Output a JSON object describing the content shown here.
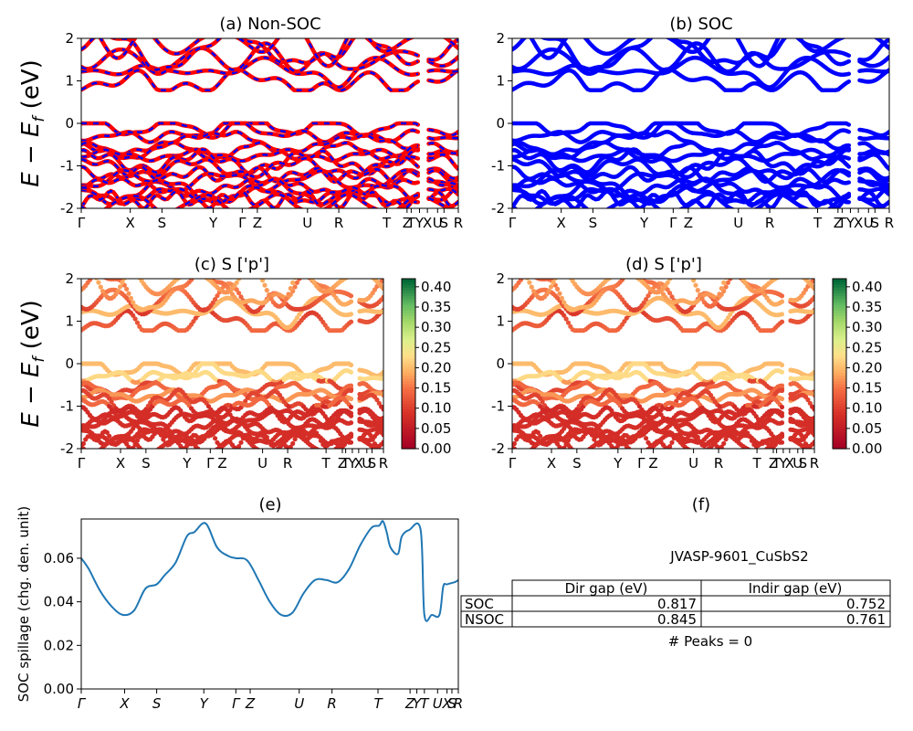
{
  "colors": {
    "nonsoc_band": "#ff0000",
    "nonsoc_dash": "#0000ff",
    "soc_band": "#0000ff",
    "spillage_line": "#1f77b4",
    "colormap": "RdYlGn",
    "axis": "#000000"
  },
  "ylabel_energy": "E − E",
  "ylabel_energy_sub": "f",
  "ylabel_energy_unit": " (eV)",
  "hsp_labels": [
    "Γ",
    "X",
    "S",
    "Y",
    "Γ",
    "Z",
    "U",
    "R",
    "T",
    "Z",
    "T",
    "Y",
    "X",
    "U",
    "S",
    "R"
  ],
  "hsp_labels_e": [
    "Γ",
    "X",
    "S",
    "Y",
    "Γ",
    "Z",
    "U",
    "R",
    "T",
    "Z",
    "Y",
    "T",
    "U",
    "X",
    "S",
    "R"
  ],
  "hsp_sep": "|",
  "colorbar_ticks": [
    "0.00",
    "0.05",
    "0.10",
    "0.15",
    "0.20",
    "0.25",
    "0.30",
    "0.35",
    "0.40"
  ],
  "table": {
    "title": "JVASP-9601_CuSbS2",
    "headers": [
      "Dir gap (eV)",
      "Indir gap (eV)"
    ],
    "rows": [
      {
        "label": "SOC",
        "dir": "0.817",
        "indir": "0.752"
      },
      {
        "label": "NSOC",
        "dir": "0.845",
        "indir": "0.761"
      }
    ],
    "footer": "# Peaks = 0"
  },
  "chart_data": [
    {
      "panel": "a",
      "type": "line",
      "title": "(a) Non-SOC",
      "ylim": [
        -2,
        2
      ],
      "yticks": [
        -2,
        -1,
        0,
        1,
        2
      ],
      "xlabel": "",
      "ylabel": "E − E_f (eV)",
      "style": "red bands with blue dashed overlay",
      "band_approx": {
        "conduction_band_minimum_eV": 0.78,
        "valence_band_maximum_eV": 0.0
      }
    },
    {
      "panel": "b",
      "type": "line",
      "title": "(b) SOC",
      "ylim": [
        -2,
        2
      ],
      "yticks": [
        -2,
        -1,
        0,
        1,
        2
      ],
      "style": "blue bands",
      "band_approx": {
        "conduction_band_minimum_eV": 0.76,
        "valence_band_maximum_eV": 0.0
      }
    },
    {
      "panel": "c",
      "type": "scatter",
      "title": "(c)  S ['p']",
      "ylim": [
        -2,
        2
      ],
      "yticks": [
        -2,
        -1,
        0,
        1,
        2
      ],
      "colorbar_range": [
        0.0,
        0.42
      ],
      "ylabel": "E − E_f (eV)"
    },
    {
      "panel": "d",
      "type": "scatter",
      "title": "(d) S ['p']",
      "ylim": [
        -2,
        2
      ],
      "yticks": [
        -2,
        -1,
        0,
        1,
        2
      ],
      "colorbar_range": [
        0.0,
        0.42
      ]
    },
    {
      "panel": "e",
      "type": "line",
      "title": "(e)",
      "ylabel": "SOC spillage (chg. den. unit)",
      "ylim": [
        0.0,
        0.078
      ],
      "yticks": [
        "0.00",
        "0.02",
        "0.04",
        "0.06"
      ],
      "x": [
        0,
        0.02,
        0.05,
        0.08,
        0.11,
        0.14,
        0.17,
        0.2,
        0.22,
        0.25,
        0.28,
        0.3,
        0.33,
        0.36,
        0.39,
        0.41,
        0.44,
        0.47,
        0.5,
        0.53,
        0.56,
        0.59,
        0.62,
        0.65,
        0.68,
        0.71,
        0.74,
        0.77,
        0.79,
        0.8,
        0.81,
        0.82,
        0.84,
        0.85,
        0.87,
        0.9,
        0.91,
        0.93,
        0.95,
        0.96,
        0.97,
        0.99,
        1.0
      ],
      "values": [
        0.06,
        0.055,
        0.045,
        0.038,
        0.034,
        0.036,
        0.046,
        0.048,
        0.052,
        0.058,
        0.07,
        0.072,
        0.076,
        0.065,
        0.061,
        0.06,
        0.059,
        0.05,
        0.04,
        0.034,
        0.035,
        0.044,
        0.05,
        0.05,
        0.049,
        0.055,
        0.066,
        0.074,
        0.075,
        0.077,
        0.072,
        0.065,
        0.062,
        0.07,
        0.073,
        0.073,
        0.034,
        0.034,
        0.034,
        0.047,
        0.048,
        0.049,
        0.05
      ]
    },
    {
      "panel": "f",
      "type": "table",
      "title": "(f)"
    }
  ]
}
